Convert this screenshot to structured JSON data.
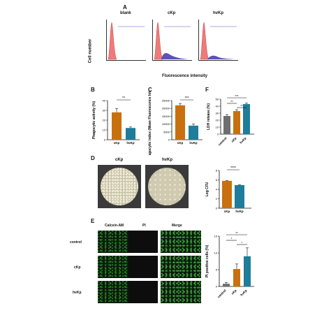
{
  "panels": {
    "a": "A",
    "b": "B",
    "c": "C",
    "d": "D",
    "e": "E",
    "f": "F"
  },
  "flow": {
    "ylabel": "Cell number",
    "xlabel": "Fluorescence intensity",
    "titles": [
      "blank",
      "cKp",
      "hvKp"
    ]
  },
  "colors": {
    "ckp": "#c8700f",
    "hvkp": "#1e7d9a",
    "control": "#6e6e6e",
    "histogram": "#f07a7a",
    "phago": "#4a3fb0"
  },
  "chart_data": [
    {
      "panel": "B",
      "type": "bar",
      "categories": [
        "cKp",
        "hvKp"
      ],
      "values": [
        28,
        12
      ],
      "errors": [
        4,
        1
      ],
      "ylabel": "Phagocytic activity (%)",
      "ylim": [
        0,
        40
      ],
      "yticks": [
        "0",
        "10",
        "20",
        "30",
        "40"
      ],
      "significance": "**"
    },
    {
      "panel": "C",
      "type": "bar",
      "categories": [
        "cKp",
        "hvKp"
      ],
      "values": [
        22000,
        9000
      ],
      "errors": [
        1200,
        1000
      ],
      "ylabel": "Phagocytic index (Mean Fluorescence Intensity)",
      "ylim": [
        0,
        25000
      ],
      "yticks": [
        "0",
        "5000",
        "10000",
        "15000",
        "20000",
        "25000"
      ],
      "significance": "***"
    },
    {
      "panel": "F",
      "type": "bar",
      "categories": [
        "control",
        "cKp",
        "hvKp"
      ],
      "values": [
        26,
        33,
        43
      ],
      "errors": [
        2,
        2,
        1.5
      ],
      "ylabel": "LDH release (%)",
      "ylim": [
        0,
        50
      ],
      "yticks": [
        "0",
        "10",
        "20",
        "30",
        "40",
        "50"
      ],
      "significance": [
        "***",
        "**",
        "**"
      ]
    },
    {
      "panel": "D",
      "type": "bar",
      "categories": [
        "cKp",
        "hvKp"
      ],
      "values": [
        5.8,
        4.9
      ],
      "errors": [
        0.1,
        0.08
      ],
      "ylabel": "Log CFU",
      "ylim": [
        0,
        8
      ],
      "yticks": [
        "0",
        "2",
        "4",
        "6",
        "8"
      ],
      "significance": "****"
    },
    {
      "panel": "E",
      "type": "bar",
      "categories": [
        "control",
        "cKp",
        "hvKp"
      ],
      "values": [
        0.8,
        5.2,
        9
      ],
      "errors": [
        0.4,
        1.5,
        2.5
      ],
      "ylabel": "PI positive cells (%)",
      "ylim": [
        0,
        15
      ],
      "yticks": [
        "0",
        "5",
        "10",
        "15"
      ],
      "significance": [
        "**",
        "*",
        "*"
      ]
    }
  ],
  "dish": {
    "labels": [
      "cKp",
      "hvKp"
    ]
  },
  "micro": {
    "columns": [
      "Calcein-AM",
      "PI",
      "Merge"
    ],
    "rows": [
      "control",
      "cKp",
      "hvKp"
    ]
  }
}
